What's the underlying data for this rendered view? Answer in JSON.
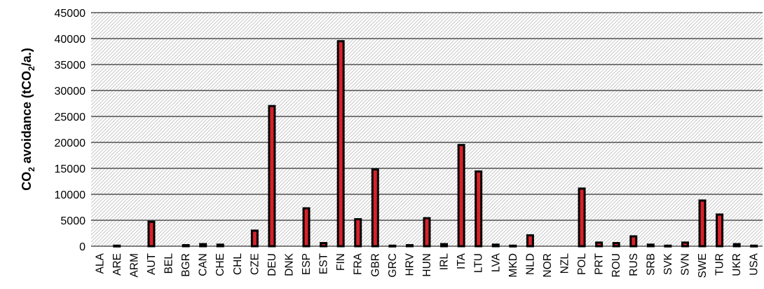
{
  "chart_data": {
    "type": "bar",
    "ylabel": {
      "prefix": "CO",
      "sub1": "2",
      "mid": " avoidance (tCO",
      "sub2": "2",
      "suffix": "/a.)"
    },
    "ylim": [
      0,
      45000
    ],
    "yticks": [
      0,
      5000,
      10000,
      15000,
      20000,
      25000,
      30000,
      35000,
      40000,
      45000
    ],
    "grid": true,
    "legend": "none",
    "colors": {
      "bar_fill": "#d6222a",
      "bar_border": "#000000",
      "grid": "#000000",
      "hatch": "#c8c8c8"
    },
    "categories": [
      "ALA",
      "ARE",
      "ARM",
      "AUT",
      "BEL",
      "BGR",
      "CAN",
      "CHE",
      "CHL",
      "CZE",
      "DEU",
      "DNK",
      "ESP",
      "EST",
      "FIN",
      "FRA",
      "GBR",
      "GRC",
      "HRV",
      "HUN",
      "IRL",
      "ITA",
      "LTU",
      "LVA",
      "MKD",
      "NLD",
      "NOR",
      "NZL",
      "POL",
      "PRT",
      "ROU",
      "RUS",
      "SRB",
      "SVK",
      "SVN",
      "SWE",
      "TUR",
      "UKR",
      "USA"
    ],
    "values": [
      0,
      100,
      0,
      4700,
      0,
      200,
      400,
      300,
      0,
      3000,
      27000,
      0,
      7300,
      600,
      39500,
      5200,
      14800,
      100,
      200,
      5400,
      400,
      19500,
      14400,
      300,
      100,
      2100,
      0,
      0,
      11100,
      700,
      600,
      1900,
      300,
      100,
      700,
      8800,
      6100,
      400,
      100
    ]
  }
}
